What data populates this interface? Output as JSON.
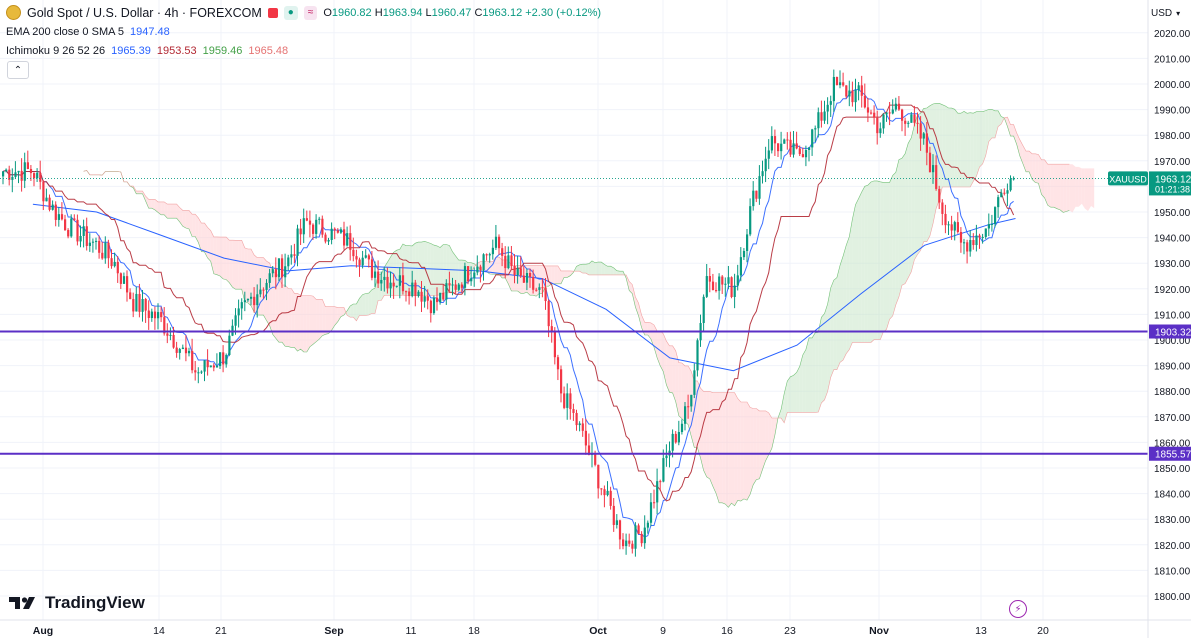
{
  "header": {
    "title": "Gold Spot / U.S. Dollar · 4h · FOREXCOM",
    "ohlc": {
      "o_label": "O",
      "o": "1960.82",
      "h_label": "H",
      "h": "1963.94",
      "l_label": "L",
      "l": "1960.47",
      "c_label": "C",
      "c": "1963.12",
      "change": "+2.30 (+0.12%)"
    },
    "badge_text": "≈"
  },
  "indicators": {
    "ema": {
      "label": "EMA 200 close 0 SMA 5",
      "value": "1947.48"
    },
    "ichimoku": {
      "label": "Ichimoku 9 26 52 26",
      "v1": "1965.39",
      "v2": "1953.53",
      "v3": "1959.46",
      "v4": "1965.48"
    }
  },
  "currency": "USD",
  "brand": "TradingView",
  "colors": {
    "bull": "#089981",
    "bear": "#f23645",
    "ema": "#2962ff",
    "kijun": "#b22833",
    "cloud_up": "#c8e6c9",
    "cloud_down": "#ffcdd2",
    "hline": "#5b2fc6",
    "price": "#089981"
  },
  "chart_data": {
    "type": "candlestick",
    "symbol": "XAUUSD",
    "timeframe": "4h",
    "y_axis": {
      "ticks": [
        2020,
        2010,
        2000,
        1990,
        1980,
        1970,
        1960,
        1950,
        1940,
        1930,
        1920,
        1910,
        1900,
        1890,
        1880,
        1870,
        1860,
        1850,
        1840,
        1830,
        1820,
        1810,
        1800
      ],
      "ylim": [
        1797,
        2025
      ]
    },
    "x_axis": {
      "labels": [
        "Aug",
        "14",
        "21",
        "Sep",
        "11",
        "18",
        "Oct",
        "9",
        "16",
        "23",
        "Nov",
        "13",
        "20"
      ],
      "bold": [
        "Aug",
        "Sep",
        "Oct",
        "Nov"
      ]
    },
    "current_price": {
      "symbol": "XAUUSD",
      "value": "1963.12",
      "countdown": "01:21:38"
    },
    "horizontal_lines": [
      {
        "value": 1903.32,
        "label": "1903.32"
      },
      {
        "value": 1855.57,
        "label": "1855.57"
      }
    ],
    "price_path": [
      {
        "date": "2023-07-31",
        "close": 1966
      },
      {
        "date": "2023-08-02",
        "close": 1952
      },
      {
        "date": "2023-08-04",
        "close": 1944
      },
      {
        "date": "2023-08-07",
        "close": 1937
      },
      {
        "date": "2023-08-09",
        "close": 1930
      },
      {
        "date": "2023-08-11",
        "close": 1915
      },
      {
        "date": "2023-08-14",
        "close": 1908
      },
      {
        "date": "2023-08-16",
        "close": 1898
      },
      {
        "date": "2023-08-18",
        "close": 1887
      },
      {
        "date": "2023-08-21",
        "close": 1894
      },
      {
        "date": "2023-08-23",
        "close": 1912
      },
      {
        "date": "2023-08-25",
        "close": 1921
      },
      {
        "date": "2023-08-28",
        "close": 1931
      },
      {
        "date": "2023-08-30",
        "close": 1946
      },
      {
        "date": "2023-09-01",
        "close": 1943
      },
      {
        "date": "2023-09-04",
        "close": 1938
      },
      {
        "date": "2023-09-06",
        "close": 1928
      },
      {
        "date": "2023-09-08",
        "close": 1924
      },
      {
        "date": "2023-09-11",
        "close": 1921
      },
      {
        "date": "2023-09-13",
        "close": 1914
      },
      {
        "date": "2023-09-15",
        "close": 1920
      },
      {
        "date": "2023-09-18",
        "close": 1931
      },
      {
        "date": "2023-09-20",
        "close": 1937
      },
      {
        "date": "2023-09-22",
        "close": 1925
      },
      {
        "date": "2023-09-25",
        "close": 1918
      },
      {
        "date": "2023-09-27",
        "close": 1880
      },
      {
        "date": "2023-09-29",
        "close": 1866
      },
      {
        "date": "2023-10-02",
        "close": 1838
      },
      {
        "date": "2023-10-04",
        "close": 1821
      },
      {
        "date": "2023-10-06",
        "close": 1825
      },
      {
        "date": "2023-10-09",
        "close": 1858
      },
      {
        "date": "2023-10-11",
        "close": 1873
      },
      {
        "date": "2023-10-13",
        "close": 1925
      },
      {
        "date": "2023-10-16",
        "close": 1920
      },
      {
        "date": "2023-10-18",
        "close": 1953
      },
      {
        "date": "2023-10-20",
        "close": 1978
      },
      {
        "date": "2023-10-23",
        "close": 1972
      },
      {
        "date": "2023-10-25",
        "close": 1982
      },
      {
        "date": "2023-10-27",
        "close": 1999
      },
      {
        "date": "2023-10-30",
        "close": 1995
      },
      {
        "date": "2023-11-01",
        "close": 1983
      },
      {
        "date": "2023-11-03",
        "close": 1992
      },
      {
        "date": "2023-11-06",
        "close": 1977
      },
      {
        "date": "2023-11-08",
        "close": 1951
      },
      {
        "date": "2023-11-10",
        "close": 1937
      },
      {
        "date": "2023-11-13",
        "close": 1944
      },
      {
        "date": "2023-11-15",
        "close": 1963
      }
    ],
    "ema200_path": [
      {
        "date": "2023-07-31",
        "value": 1953
      },
      {
        "date": "2023-08-07",
        "value": 1950
      },
      {
        "date": "2023-08-14",
        "value": 1941
      },
      {
        "date": "2023-08-21",
        "value": 1932
      },
      {
        "date": "2023-08-28",
        "value": 1927
      },
      {
        "date": "2023-09-04",
        "value": 1929
      },
      {
        "date": "2023-09-11",
        "value": 1928
      },
      {
        "date": "2023-09-18",
        "value": 1927
      },
      {
        "date": "2023-09-25",
        "value": 1924
      },
      {
        "date": "2023-10-02",
        "value": 1912
      },
      {
        "date": "2023-10-09",
        "value": 1893
      },
      {
        "date": "2023-10-16",
        "value": 1888
      },
      {
        "date": "2023-10-23",
        "value": 1898
      },
      {
        "date": "2023-10-30",
        "value": 1918
      },
      {
        "date": "2023-11-06",
        "value": 1937
      },
      {
        "date": "2023-11-13",
        "value": 1945
      },
      {
        "date": "2023-11-16",
        "value": 1947.48
      }
    ]
  }
}
